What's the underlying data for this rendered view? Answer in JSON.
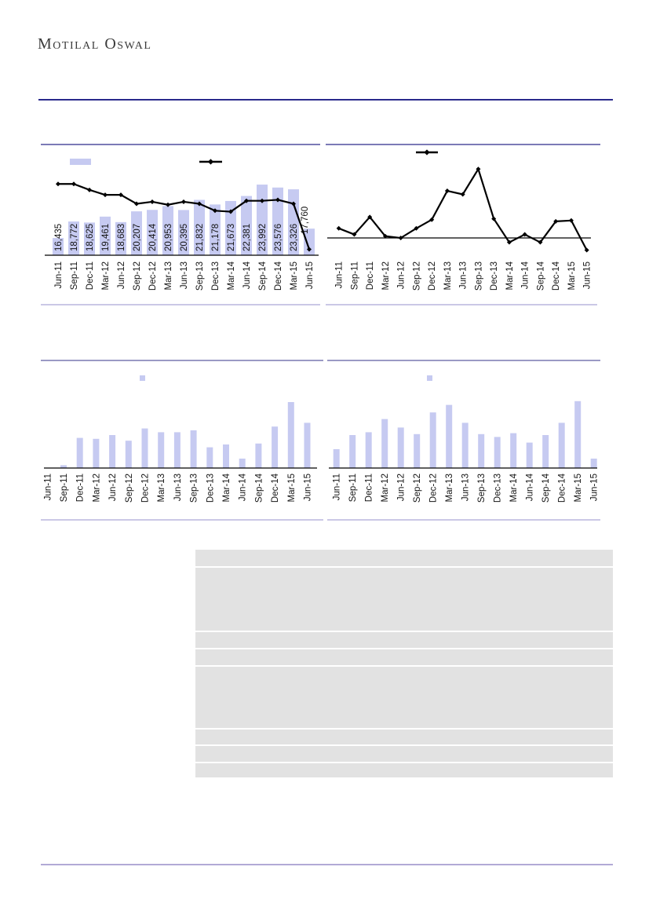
{
  "brand": {
    "logo_text": "Motilal Oswal"
  },
  "categories": [
    "Jun-11",
    "Sep-11",
    "Dec-11",
    "Mar-12",
    "Jun-12",
    "Sep-12",
    "Dec-12",
    "Mar-13",
    "Jun-13",
    "Sep-13",
    "Dec-13",
    "Mar-14",
    "Jun-14",
    "Sep-14",
    "Dec-14",
    "Mar-15",
    "Jun-15"
  ],
  "chart_data": [
    {
      "id": "c1",
      "type": "bar",
      "title": "",
      "xlabel": "",
      "ylabel": "",
      "grid": false,
      "legend_position": "top",
      "legend_labels_visible": false,
      "ylim": [
        14000,
        28000
      ],
      "series": [
        {
          "name": "quarterly-value-bars",
          "type": "bar",
          "values": [
            16435,
            18772,
            18625,
            19461,
            18683,
            20207,
            20414,
            20953,
            20395,
            21832,
            21178,
            21673,
            22381,
            23992,
            23576,
            23326,
            17760
          ],
          "labels": [
            "16,435",
            "18,772",
            "18,625",
            "19,461",
            "18,683",
            "20,207",
            "20,414",
            "20,953",
            "20,395",
            "21,832",
            "21,178",
            "21,673",
            "22,381",
            "23,992",
            "23,576",
            "23,326",
            "17,760"
          ]
        },
        {
          "name": "overlay-trend-line",
          "type": "line",
          "scale_note": "secondary axis not labeled; values are fractions of plot height above baseline",
          "values_rel": [
            0.72,
            0.72,
            0.66,
            0.61,
            0.61,
            0.52,
            0.54,
            0.51,
            0.54,
            0.52,
            0.45,
            0.44,
            0.55,
            0.55,
            0.56,
            0.52,
            0.06
          ]
        }
      ]
    },
    {
      "id": "c2",
      "type": "line",
      "title": "",
      "grid": false,
      "zero_line": true,
      "legend_position": "top",
      "legend_labels_visible": false,
      "series": [
        {
          "name": "trend-line",
          "type": "line",
          "scale_note": "axis not labeled; values are fractions of plot height relative to the zero line",
          "values_rel": [
            0.11,
            0.04,
            0.24,
            0.02,
            0.0,
            0.11,
            0.21,
            0.54,
            0.5,
            0.79,
            0.22,
            -0.05,
            0.04,
            -0.05,
            0.19,
            0.2,
            -0.14
          ]
        }
      ]
    },
    {
      "id": "c3",
      "type": "bar",
      "title": "",
      "grid": false,
      "legend_position": "top",
      "legend_labels_visible": false,
      "series": [
        {
          "name": "quarterly-bars",
          "type": "bar",
          "scale_note": "axis not labeled; values are fractions of plot height",
          "values_rel": [
            0,
            0.03,
            0.32,
            0.31,
            0.35,
            0.29,
            0.42,
            0.38,
            0.38,
            0.4,
            0.22,
            0.25,
            0.1,
            0.26,
            0.44,
            0.7,
            0.48
          ]
        }
      ]
    },
    {
      "id": "c4",
      "type": "bar",
      "title": "",
      "grid": false,
      "legend_position": "top",
      "legend_labels_visible": false,
      "series": [
        {
          "name": "quarterly-bars",
          "type": "bar",
          "scale_note": "axis not labeled; values are fractions of plot height",
          "values_rel": [
            0.2,
            0.35,
            0.38,
            0.52,
            0.43,
            0.36,
            0.59,
            0.67,
            0.48,
            0.36,
            0.33,
            0.37,
            0.27,
            0.35,
            0.48,
            0.71,
            0.1
          ]
        }
      ]
    }
  ],
  "table": {
    "row_count": 8,
    "visible_text": []
  },
  "colors": {
    "bar": "#c6caf1",
    "line": "#000000",
    "axis": "#000000",
    "text": "#141414",
    "panel_top_border": "#7b7ab6",
    "panel_top_border_mid": "#9a99c4",
    "panel_bottom_border": "#cbc8e6",
    "header_rule": "#2a2a8c",
    "footer_rule": "#b2aad6",
    "table_fill": "#e2e2e2"
  }
}
